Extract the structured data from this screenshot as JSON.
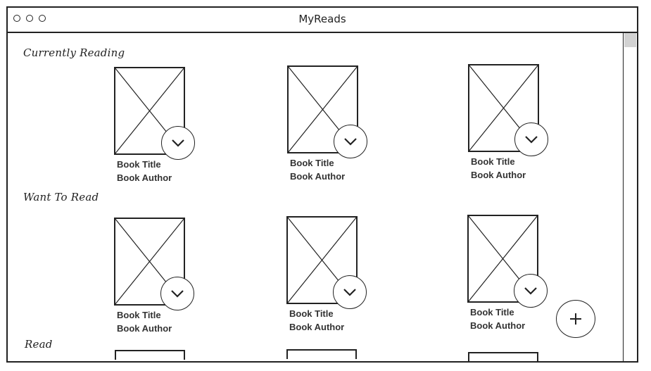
{
  "window": {
    "title": "MyReads"
  },
  "shelves": [
    {
      "name": "Currently Reading",
      "books": [
        {
          "title": "Book Title",
          "author": "Book Author"
        },
        {
          "title": "Book Title",
          "author": "Book Author"
        },
        {
          "title": "Book Title",
          "author": "Book Author"
        }
      ]
    },
    {
      "name": "Want To Read",
      "books": [
        {
          "title": "Book Title",
          "author": "Book Author"
        },
        {
          "title": "Book Title",
          "author": "Book Author"
        },
        {
          "title": "Book Title",
          "author": "Book Author"
        }
      ]
    },
    {
      "name": "Read",
      "books": []
    }
  ],
  "icons": {
    "menu": "chevron-down-icon",
    "add": "plus-icon"
  },
  "colors": {
    "stroke": "#222222",
    "scroll_thumb": "#d2d2d2"
  }
}
